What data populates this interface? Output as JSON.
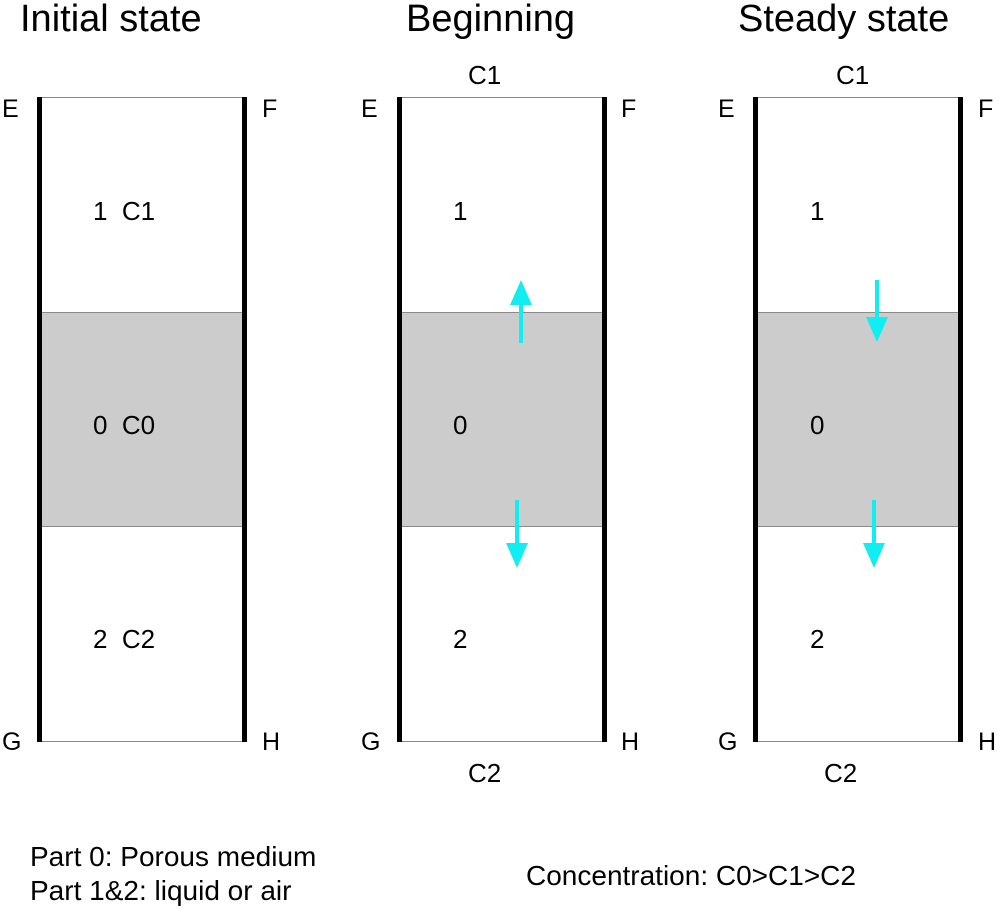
{
  "colors": {
    "porous_fill": "#cccccc",
    "arrow": "#11eef2",
    "wall": "#000000"
  },
  "panels": [
    {
      "title": "Initial state",
      "top_label": "",
      "bottom_label": "",
      "corners": {
        "E": "E",
        "F": "F",
        "G": "G",
        "H": "H"
      },
      "part1": "1  C1",
      "part0": "0  C0",
      "part2": "2  C2",
      "arrows": []
    },
    {
      "title": "Beginning",
      "top_label": "C1",
      "bottom_label": "C2",
      "corners": {
        "E": "E",
        "F": "F",
        "G": "G",
        "H": "H"
      },
      "part1": "1",
      "part0": "0",
      "part2": "2",
      "arrows": [
        "up",
        "down"
      ]
    },
    {
      "title": "Steady state",
      "top_label": "C1",
      "bottom_label": "C2",
      "corners": {
        "E": "E",
        "F": "F",
        "G": "G",
        "H": "H"
      },
      "part1": "1",
      "part0": "0",
      "part2": "2",
      "arrows": [
        "down",
        "down"
      ]
    }
  ],
  "legend": {
    "line1": "Part 0: Porous medium",
    "line2": "Part 1&2: liquid or air",
    "concentration": "Concentration: C0>C1>C2"
  }
}
